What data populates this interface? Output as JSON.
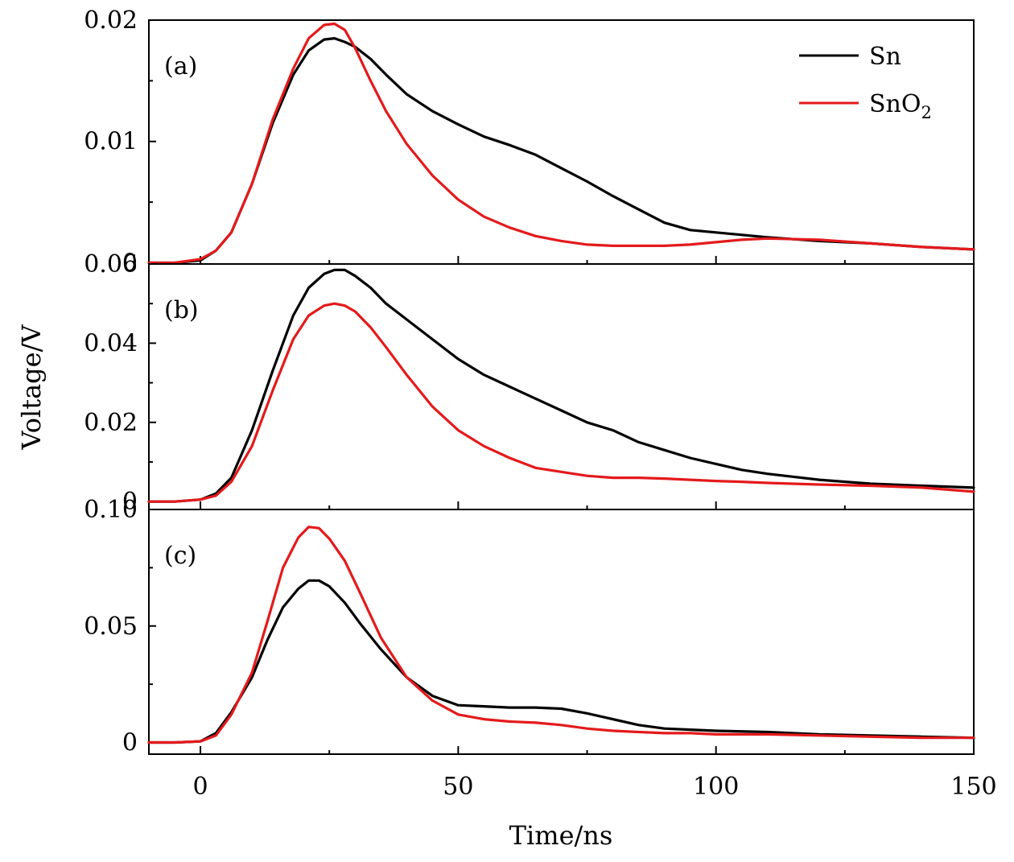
{
  "chart_data": {
    "type": "line",
    "xlabel": "Time/ns",
    "ylabel": "Voltage/V",
    "xlim": [
      -10,
      150
    ],
    "x_ticks": [
      0,
      50,
      100,
      150
    ],
    "x_minor_ticks": [
      25,
      75,
      125
    ],
    "legend": {
      "position": "top-right",
      "entries": [
        {
          "label": "Sn",
          "color": "#000000"
        },
        {
          "label": "SnO",
          "subscript": "2",
          "color": "#e41a1c"
        }
      ]
    },
    "colors": {
      "Sn": "#000000",
      "SnO2": "#e41a1c"
    },
    "panels": [
      {
        "tag": "(a)",
        "ylim": [
          -0.0001,
          0.02
        ],
        "y_ticks": [
          0,
          0.01,
          0.02
        ],
        "y_tick_labels": [
          "0",
          "0.01",
          "0.02"
        ],
        "y_minor_ticks": [
          0.005,
          0.015
        ],
        "series": [
          {
            "name": "Sn",
            "color": "#000000",
            "x": [
              -10,
              -5,
              0,
              3,
              6,
              10,
              14,
              18,
              21,
              24,
              26,
              28,
              30,
              33,
              36,
              40,
              45,
              50,
              55,
              60,
              65,
              70,
              75,
              80,
              85,
              90,
              95,
              100,
              105,
              110,
              120,
              130,
              140,
              150
            ],
            "y": [
              0.0,
              0.0,
              0.0002,
              0.001,
              0.0025,
              0.0065,
              0.0115,
              0.0155,
              0.0175,
              0.0184,
              0.0185,
              0.0182,
              0.0178,
              0.0168,
              0.0155,
              0.0139,
              0.0125,
              0.0114,
              0.0104,
              0.0097,
              0.0089,
              0.0078,
              0.0067,
              0.0055,
              0.0044,
              0.0033,
              0.0027,
              0.0025,
              0.0023,
              0.0021,
              0.0018,
              0.0016,
              0.0013,
              0.0011
            ]
          },
          {
            "name": "SnO2",
            "color": "#e41a1c",
            "x": [
              -10,
              -5,
              0,
              3,
              6,
              10,
              14,
              18,
              21,
              24,
              26,
              28,
              30,
              33,
              36,
              40,
              45,
              50,
              55,
              60,
              65,
              70,
              75,
              80,
              85,
              90,
              95,
              100,
              105,
              110,
              120,
              130,
              140,
              150
            ],
            "y": [
              0.0,
              0.0,
              0.0003,
              0.001,
              0.0025,
              0.0065,
              0.0118,
              0.016,
              0.0185,
              0.0196,
              0.0197,
              0.0192,
              0.0177,
              0.015,
              0.0125,
              0.0098,
              0.0072,
              0.0052,
              0.0038,
              0.0029,
              0.0022,
              0.0018,
              0.0015,
              0.0014,
              0.0014,
              0.0014,
              0.0015,
              0.0017,
              0.0019,
              0.002,
              0.0019,
              0.0016,
              0.0013,
              0.0011
            ]
          }
        ]
      },
      {
        "tag": "(b)",
        "ylim": [
          -0.002,
          0.06
        ],
        "y_ticks": [
          0,
          0.02,
          0.04,
          0.06
        ],
        "y_tick_labels": [
          "0",
          "0.02",
          "0.04",
          "0.06"
        ],
        "y_minor_ticks": [
          0.01,
          0.03,
          0.05
        ],
        "series": [
          {
            "name": "Sn",
            "color": "#000000",
            "x": [
              -10,
              -5,
              0,
              3,
              6,
              10,
              14,
              18,
              21,
              24,
              26,
              28,
              30,
              33,
              36,
              40,
              45,
              50,
              55,
              60,
              65,
              70,
              75,
              80,
              85,
              90,
              95,
              100,
              105,
              110,
              120,
              130,
              140,
              150
            ],
            "y": [
              0.0,
              0.0,
              0.0005,
              0.002,
              0.006,
              0.018,
              0.033,
              0.047,
              0.054,
              0.0575,
              0.0585,
              0.0585,
              0.057,
              0.054,
              0.05,
              0.046,
              0.041,
              0.036,
              0.032,
              0.029,
              0.026,
              0.023,
              0.02,
              0.018,
              0.015,
              0.013,
              0.011,
              0.0095,
              0.008,
              0.007,
              0.0055,
              0.0045,
              0.004,
              0.0035
            ]
          },
          {
            "name": "SnO2",
            "color": "#e41a1c",
            "x": [
              -10,
              -5,
              0,
              3,
              6,
              10,
              14,
              18,
              21,
              24,
              26,
              28,
              30,
              33,
              36,
              40,
              45,
              50,
              55,
              60,
              65,
              70,
              75,
              80,
              85,
              90,
              95,
              100,
              105,
              110,
              120,
              130,
              140,
              150
            ],
            "y": [
              0.0,
              0.0,
              0.0005,
              0.0015,
              0.005,
              0.014,
              0.028,
              0.041,
              0.047,
              0.0495,
              0.05,
              0.0495,
              0.048,
              0.044,
              0.039,
              0.032,
              0.024,
              0.018,
              0.014,
              0.011,
              0.0085,
              0.0075,
              0.0065,
              0.006,
              0.006,
              0.0058,
              0.0055,
              0.0052,
              0.005,
              0.0047,
              0.0043,
              0.004,
              0.0035,
              0.0025
            ]
          }
        ]
      },
      {
        "tag": "(c)",
        "ylim": [
          -0.005,
          0.1
        ],
        "y_ticks": [
          0,
          0.05,
          0.1
        ],
        "y_tick_labels": [
          "0",
          "0.05",
          "0.10"
        ],
        "y_minor_ticks": [
          0.025,
          0.075
        ],
        "series": [
          {
            "name": "Sn",
            "color": "#000000",
            "x": [
              -10,
              -5,
              0,
              3,
              6,
              10,
              13,
              16,
              19,
              21,
              23,
              25,
              28,
              31,
              35,
              40,
              45,
              50,
              55,
              60,
              65,
              70,
              75,
              80,
              85,
              90,
              95,
              100,
              110,
              120,
              130,
              140,
              150
            ],
            "y": [
              0.0,
              0.0,
              0.0005,
              0.004,
              0.013,
              0.028,
              0.044,
              0.058,
              0.066,
              0.0695,
              0.0695,
              0.067,
              0.06,
              0.051,
              0.04,
              0.028,
              0.02,
              0.016,
              0.0155,
              0.015,
              0.015,
              0.0145,
              0.0125,
              0.01,
              0.0075,
              0.006,
              0.0055,
              0.005,
              0.0045,
              0.0035,
              0.003,
              0.0025,
              0.002
            ]
          },
          {
            "name": "SnO2",
            "color": "#e41a1c",
            "x": [
              -10,
              -5,
              0,
              3,
              6,
              10,
              13,
              16,
              19,
              21,
              23,
              25,
              28,
              31,
              35,
              40,
              45,
              50,
              55,
              60,
              65,
              70,
              75,
              80,
              85,
              90,
              95,
              100,
              110,
              120,
              130,
              140,
              150
            ],
            "y": [
              0.0,
              0.0,
              0.0005,
              0.003,
              0.012,
              0.03,
              0.052,
              0.075,
              0.088,
              0.0925,
              0.092,
              0.0875,
              0.078,
              0.064,
              0.045,
              0.028,
              0.018,
              0.012,
              0.01,
              0.009,
              0.0085,
              0.0075,
              0.006,
              0.005,
              0.0045,
              0.004,
              0.004,
              0.0035,
              0.0035,
              0.003,
              0.0025,
              0.002,
              0.002
            ]
          }
        ]
      }
    ]
  }
}
